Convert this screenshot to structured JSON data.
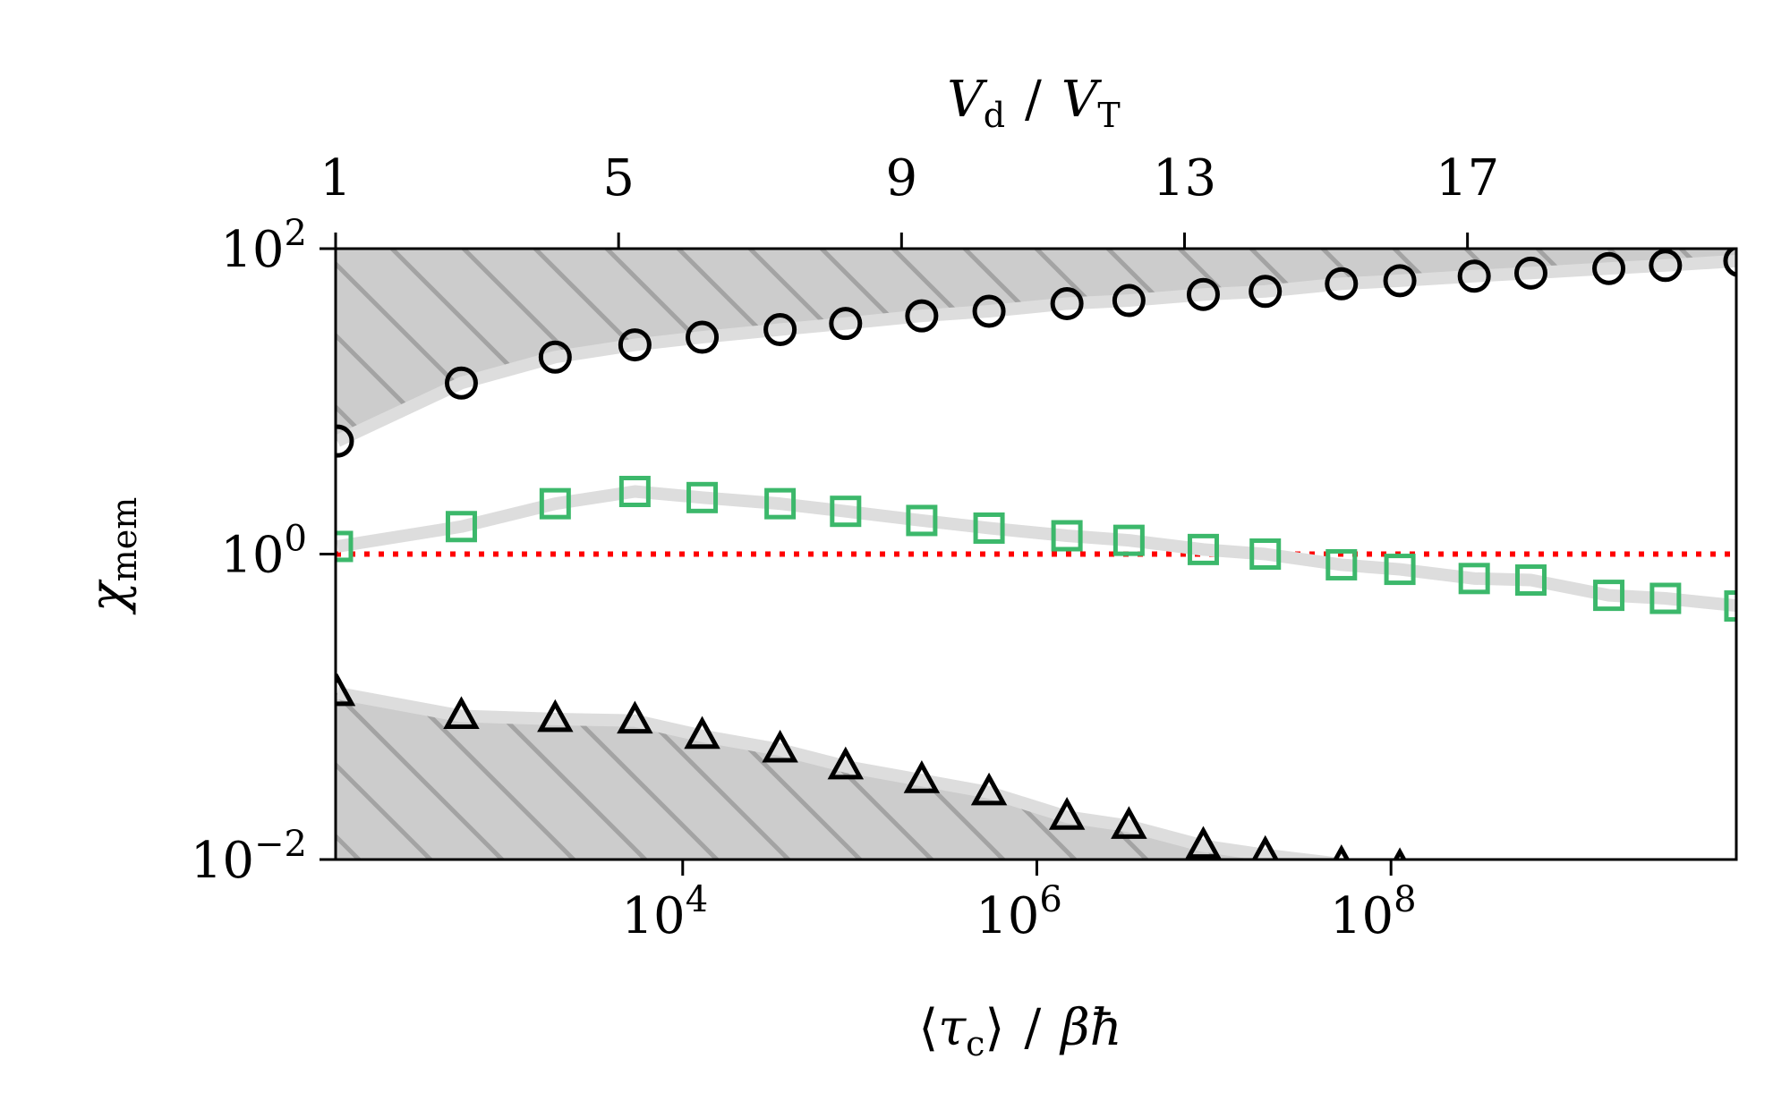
{
  "chart_data": {
    "type": "scatter",
    "title": "",
    "ylabel": {
      "base": "χ",
      "sub": "mem"
    },
    "xlabel_bottom": {
      "open": "⟨",
      "tau": "τ",
      "sub": "c",
      "close": "⟩",
      "sep": "/",
      "denom": "βħ"
    },
    "xlabel_top": {
      "v1": "V",
      "sub1": "d",
      "sep": "/",
      "v2": "V",
      "sub2": "T"
    },
    "y_scale": "log",
    "x_bottom_scale": "log",
    "ylim_exp": [
      -2,
      2
    ],
    "x_bottom_lim_exp": [
      2.04,
      9.95
    ],
    "x_top_lim": [
      1,
      20.8
    ],
    "y_ticks": [
      {
        "exp": -2,
        "label": "10",
        "sup": "−2"
      },
      {
        "exp": 0,
        "label": "10",
        "sup": "0"
      },
      {
        "exp": 2,
        "label": "10",
        "sup": "2"
      }
    ],
    "x_bottom_ticks": [
      {
        "exp": 4,
        "label": "10",
        "sup": "4"
      },
      {
        "exp": 6,
        "label": "10",
        "sup": "6"
      },
      {
        "exp": 8,
        "label": "10",
        "sup": "8"
      }
    ],
    "x_top_ticks": [
      {
        "value": 1,
        "label": "1"
      },
      {
        "value": 5,
        "label": "5"
      },
      {
        "value": 9,
        "label": "9"
      },
      {
        "value": 13,
        "label": "13"
      },
      {
        "value": 17,
        "label": "17"
      }
    ],
    "x_log_tau": [
      2.05,
      2.75,
      3.28,
      3.73,
      4.11,
      4.55,
      4.92,
      5.35,
      5.73,
      6.17,
      6.52,
      6.94,
      7.29,
      7.72,
      8.05,
      8.47,
      8.79,
      9.23,
      9.55,
      9.97
    ],
    "series": [
      {
        "marker": "circle",
        "color": "#000000",
        "y_log": [
          0.74,
          1.12,
          1.29,
          1.37,
          1.42,
          1.47,
          1.51,
          1.56,
          1.59,
          1.64,
          1.66,
          1.7,
          1.72,
          1.77,
          1.79,
          1.82,
          1.84,
          1.87,
          1.89,
          1.92
        ]
      },
      {
        "marker": "square",
        "color": "#3cb86b",
        "y_log": [
          0.05,
          0.18,
          0.33,
          0.41,
          0.37,
          0.33,
          0.28,
          0.22,
          0.17,
          0.12,
          0.09,
          0.03,
          0.0,
          -0.07,
          -0.1,
          -0.16,
          -0.17,
          -0.27,
          -0.29,
          -0.34
        ]
      },
      {
        "marker": "triangle",
        "color": "#000000",
        "y_log": [
          -0.91,
          -1.06,
          -1.08,
          -1.09,
          -1.19,
          -1.28,
          -1.39,
          -1.48,
          -1.56,
          -1.72,
          -1.78,
          -1.91,
          -1.97,
          -2.03,
          -2.05
        ]
      }
    ],
    "reference_line": {
      "y_log": 0,
      "color": "#ff0000",
      "style": "dotted"
    },
    "shaded_regions": [
      {
        "position": "above circles",
        "fill": "#cccccc",
        "hatch": "diagonal"
      },
      {
        "position": "below triangles",
        "fill": "#cccccc",
        "hatch": "diagonal"
      }
    ],
    "grid": false,
    "legend": "none"
  }
}
